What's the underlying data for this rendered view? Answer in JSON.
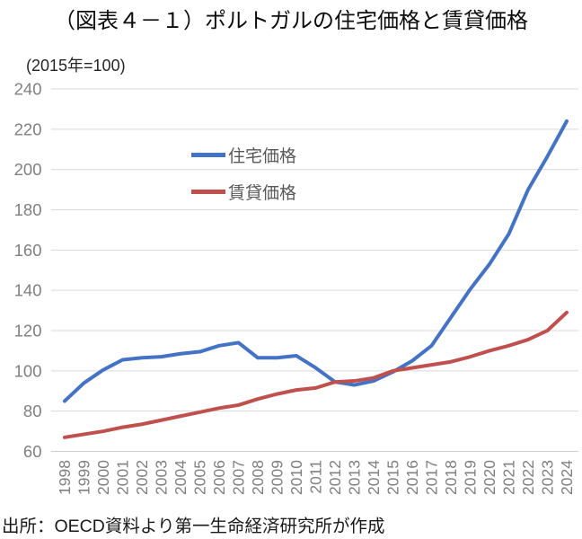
{
  "title": "（図表４－１）ポルトガルの住宅価格と賃貸価格",
  "unit_note": "(2015年=100)",
  "source": "出所：OECD資料より第一生命経済研究所が作成",
  "colors": {
    "housing": "#4472C4",
    "rent": "#C0504D",
    "gridline": "#D9D9D9",
    "axis_line": "#CDCDCD",
    "tick_label": "#808080",
    "legend_label": "#595959"
  },
  "chart_data": {
    "type": "line",
    "title": "（図表４－１）ポルトガルの住宅価格と賃貸価格",
    "subtitle": "(2015年=100)",
    "x": [
      1998,
      1999,
      2000,
      2001,
      2002,
      2003,
      2004,
      2005,
      2006,
      2007,
      2008,
      2009,
      2010,
      2011,
      2012,
      2013,
      2014,
      2015,
      2016,
      2017,
      2018,
      2019,
      2020,
      2021,
      2022,
      2023,
      2024
    ],
    "series": [
      {
        "name": "住宅価格",
        "color": "#4472C4",
        "values": [
          85,
          94,
          100.5,
          105.5,
          106.5,
          107,
          108.5,
          109.5,
          112.5,
          114,
          106.5,
          106.5,
          107.5,
          101.5,
          94.5,
          93,
          95,
          99.5,
          105,
          112.5,
          126.5,
          140.5,
          153,
          168,
          190,
          206.5,
          224
        ]
      },
      {
        "name": "賃貸価格",
        "color": "#C0504D",
        "values": [
          67,
          68.5,
          70,
          72,
          73.5,
          75.5,
          77.5,
          79.5,
          81.5,
          83,
          86,
          88.5,
          90.5,
          91.5,
          94.5,
          95,
          96.5,
          100,
          101.5,
          103,
          104.5,
          107,
          110,
          112.5,
          115.5,
          120,
          129
        ]
      }
    ],
    "ylim": [
      60,
      240
    ],
    "ytick_step": 20,
    "grid": true,
    "legend_position": "inside-upper-left"
  }
}
